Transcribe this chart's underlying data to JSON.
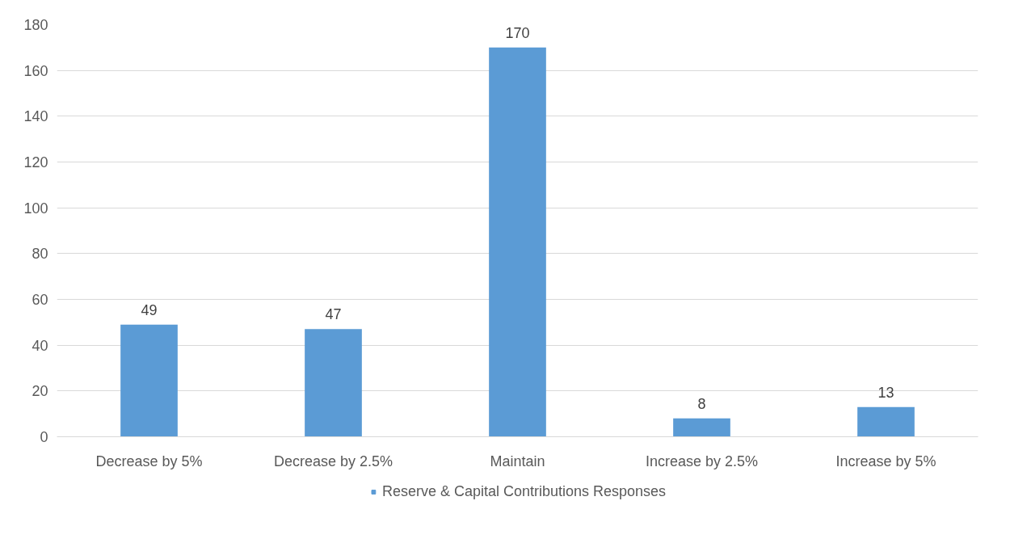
{
  "chart_data": {
    "type": "bar",
    "categories": [
      "Decrease by 5%",
      "Decrease by 2.5%",
      "Maintain",
      "Increase by 2.5%",
      "Increase by 5%"
    ],
    "series": [
      {
        "name": "Reserve & Capital Contributions Responses",
        "color": "#5b9bd5",
        "values": [
          49,
          47,
          170,
          8,
          13
        ]
      }
    ],
    "ylim": [
      0,
      180
    ],
    "yticks": [
      0,
      20,
      40,
      60,
      80,
      100,
      120,
      140,
      160,
      180
    ],
    "grid": "y",
    "legend": "bottom",
    "data_labels": true
  }
}
